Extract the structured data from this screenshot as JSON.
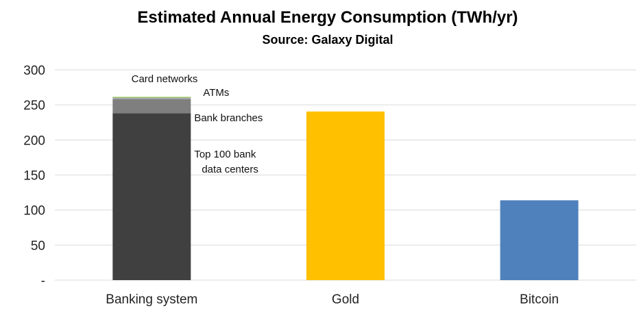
{
  "chart_data": {
    "type": "bar",
    "stacked": true,
    "title": "Estimated Annual Energy Consumption (TWh/yr)",
    "subtitle": "Source: Galaxy Digital",
    "ylim": [
      0,
      300
    ],
    "yticks": [
      0,
      50,
      100,
      150,
      200,
      250,
      300
    ],
    "ytick_labels": [
      "-",
      "50",
      "100",
      "150",
      "200",
      "250",
      "300"
    ],
    "grid": true,
    "categories": [
      "Banking system",
      "Gold",
      "Bitcoin"
    ],
    "bars": [
      {
        "category": "Banking system",
        "segments": [
          {
            "label": "Top 100 bank data centers",
            "label_lines": [
              "Top 100 bank",
              "data centers"
            ],
            "value": 238,
            "color": "#404040"
          },
          {
            "label": "Bank branches",
            "label_lines": [
              "Bank branches"
            ],
            "value": 20,
            "color": "#7f7f7f"
          },
          {
            "label": "ATMs",
            "label_lines": [
              "ATMs"
            ],
            "value": 2.5,
            "color": "#a5a5a5"
          },
          {
            "label": "Card networks",
            "label_lines": [
              "Card networks"
            ],
            "value": 1,
            "color": "#92d050"
          }
        ]
      },
      {
        "category": "Gold",
        "segments": [
          {
            "label": "",
            "value": 240.6,
            "color": "#ffc000"
          }
        ]
      },
      {
        "category": "Bitcoin",
        "segments": [
          {
            "label": "",
            "value": 113.9,
            "color": "#4f81bd"
          }
        ]
      }
    ]
  }
}
